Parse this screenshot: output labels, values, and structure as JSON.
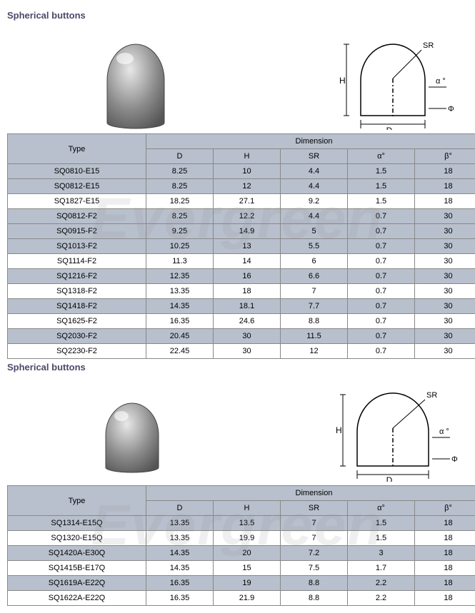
{
  "section1": {
    "title": "Spherical buttons",
    "dimension_label": "Dimension",
    "type_label": "Type",
    "columns": [
      "D",
      "H",
      "SR",
      "α°",
      "β°"
    ],
    "diagram_labels": {
      "SR": "SR",
      "H": "H",
      "D": "D",
      "alpha": "α °",
      "phi": "Φ"
    },
    "rows": [
      {
        "type": "SQ0810-E15",
        "D": "8.25",
        "H": "10",
        "SR": "4.4",
        "a": "1.5",
        "b": "18",
        "alt": true
      },
      {
        "type": "SQ0812-E15",
        "D": "8.25",
        "H": "12",
        "SR": "4.4",
        "a": "1.5",
        "b": "18",
        "alt": true
      },
      {
        "type": "SQ1827-E15",
        "D": "18.25",
        "H": "27.1",
        "SR": "9.2",
        "a": "1.5",
        "b": "18",
        "alt": false
      },
      {
        "type": "SQ0812-F2",
        "D": "8.25",
        "H": "12.2",
        "SR": "4.4",
        "a": "0.7",
        "b": "30",
        "alt": true
      },
      {
        "type": "SQ0915-F2",
        "D": "9.25",
        "H": "14.9",
        "SR": "5",
        "a": "0.7",
        "b": "30",
        "alt": true
      },
      {
        "type": "SQ1013-F2",
        "D": "10.25",
        "H": "13",
        "SR": "5.5",
        "a": "0.7",
        "b": "30",
        "alt": true
      },
      {
        "type": "SQ1114-F2",
        "D": "11.3",
        "H": "14",
        "SR": "6",
        "a": "0.7",
        "b": "30",
        "alt": false
      },
      {
        "type": "SQ1216-F2",
        "D": "12.35",
        "H": "16",
        "SR": "6.6",
        "a": "0.7",
        "b": "30",
        "alt": true
      },
      {
        "type": "SQ1318-F2",
        "D": "13.35",
        "H": "18",
        "SR": "7",
        "a": "0.7",
        "b": "30",
        "alt": false
      },
      {
        "type": "SQ1418-F2",
        "D": "14.35",
        "H": "18.1",
        "SR": "7.7",
        "a": "0.7",
        "b": "30",
        "alt": true
      },
      {
        "type": "SQ1625-F2",
        "D": "16.35",
        "H": "24.6",
        "SR": "8.8",
        "a": "0.7",
        "b": "30",
        "alt": false
      },
      {
        "type": "SQ2030-F2",
        "D": "20.45",
        "H": "30",
        "SR": "11.5",
        "a": "0.7",
        "b": "30",
        "alt": true
      },
      {
        "type": "SQ2230-F2",
        "D": "22.45",
        "H": "30",
        "SR": "12",
        "a": "0.7",
        "b": "30",
        "alt": false
      }
    ]
  },
  "section2": {
    "title": "Spherical buttons",
    "dimension_label": "Dimension",
    "type_label": "Type",
    "columns": [
      "D",
      "H",
      "SR",
      "α°",
      "β°"
    ],
    "diagram_labels": {
      "SR": "SR",
      "H": "H",
      "D": "D",
      "alpha": "α °",
      "phi": "Φ"
    },
    "rows": [
      {
        "type": "SQ1314-E15Q",
        "D": "13.35",
        "H": "13.5",
        "SR": "7",
        "a": "1.5",
        "b": "18",
        "alt": true
      },
      {
        "type": "SQ1320-E15Q",
        "D": "13.35",
        "H": "19.9",
        "SR": "7",
        "a": "1.5",
        "b": "18",
        "alt": false
      },
      {
        "type": "SQ1420A-E30Q",
        "D": "14.35",
        "H": "20",
        "SR": "7.2",
        "a": "3",
        "b": "18",
        "alt": true
      },
      {
        "type": "SQ1415B-E17Q",
        "D": "14.35",
        "H": "15",
        "SR": "7.5",
        "a": "1.7",
        "b": "18",
        "alt": false
      },
      {
        "type": "SQ1619A-E22Q",
        "D": "16.35",
        "H": "19",
        "SR": "8.8",
        "a": "2.2",
        "b": "18",
        "alt": true
      },
      {
        "type": "SQ1622A-E22Q",
        "D": "16.35",
        "H": "21.9",
        "SR": "8.8",
        "a": "2.2",
        "b": "18",
        "alt": false
      }
    ]
  },
  "watermark": "Evergreen",
  "colors": {
    "header_bg": "#b8c0cd",
    "border": "#888888",
    "title": "#4a4a6a"
  }
}
